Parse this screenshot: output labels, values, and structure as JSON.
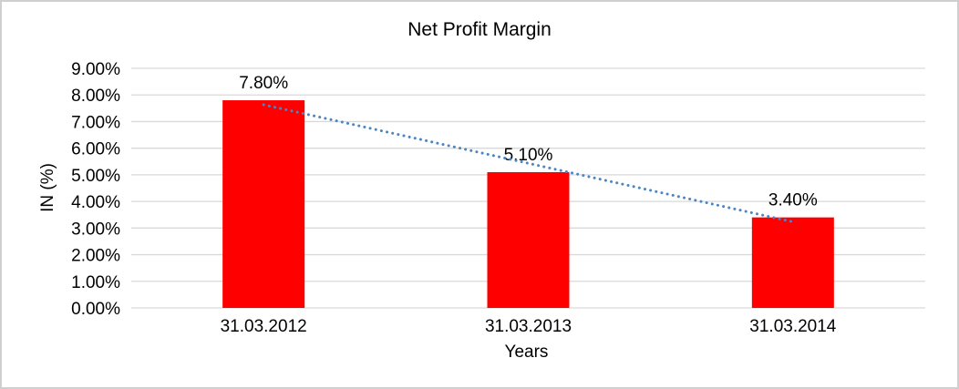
{
  "frame": {
    "background": "#FFFFFF",
    "border_color": "#CFCFCF"
  },
  "chart_data": {
    "type": "bar",
    "title": "Net Profit Margin",
    "xlabel": "Years",
    "ylabel": "IN (%)",
    "categories": [
      "31.03.2012",
      "31.03.2013",
      "31.03.2014"
    ],
    "values": [
      7.8,
      5.1,
      3.4
    ],
    "data_labels": [
      "7.80%",
      "5.10%",
      "3.40%"
    ],
    "y_ticks": [
      "0.00%",
      "1.00%",
      "2.00%",
      "3.00%",
      "4.00%",
      "5.00%",
      "6.00%",
      "7.00%",
      "8.00%",
      "9.00%"
    ],
    "y_tick_step": 1,
    "ylim": [
      0,
      9
    ],
    "grid": true,
    "grid_color": "#D9D9D9",
    "bar_color": "#FF0000",
    "text_color": "#000000",
    "legend": "none",
    "trendline": {
      "type": "linear",
      "style": "dotted",
      "color": "#4A86C6"
    }
  }
}
